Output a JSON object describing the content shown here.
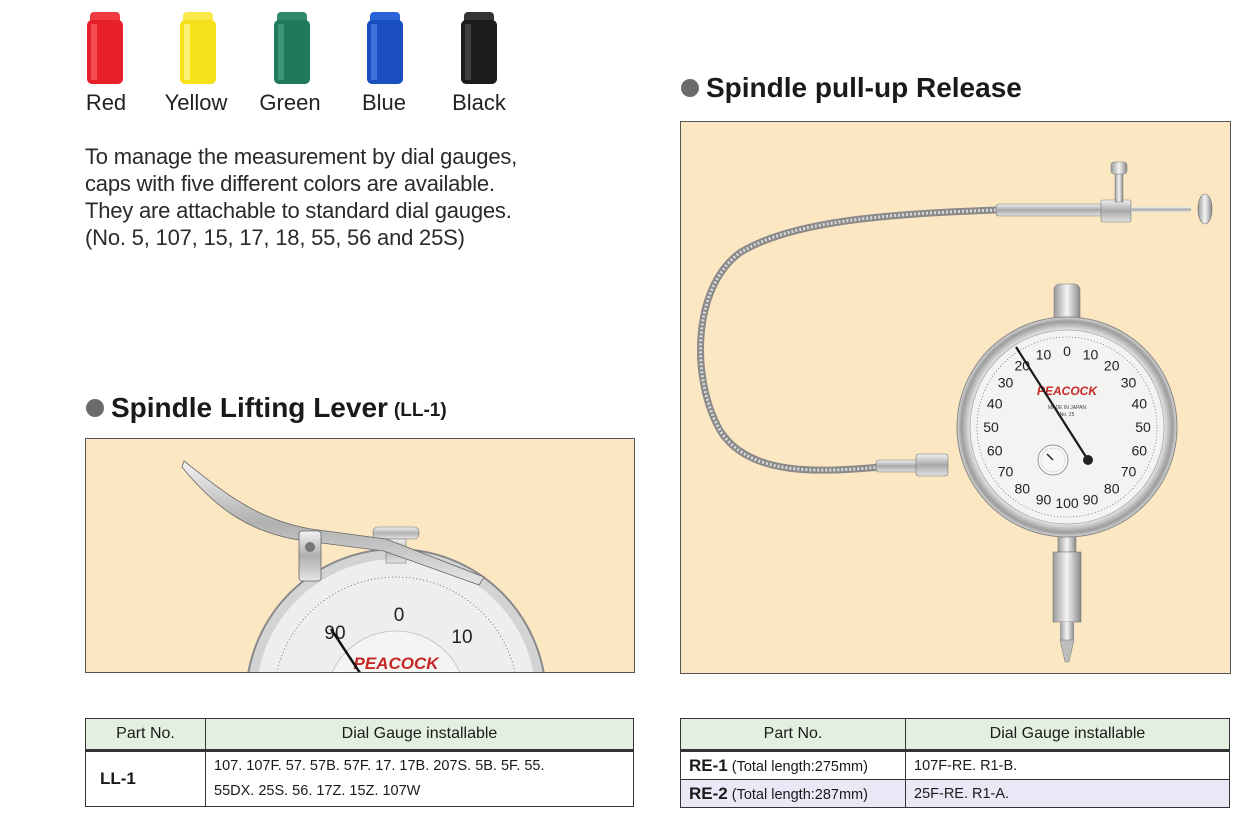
{
  "caps": [
    {
      "label": "Red",
      "color": "#e8202a"
    },
    {
      "label": "Yellow",
      "color": "#f5e01a"
    },
    {
      "label": "Green",
      "color": "#1f7a5a"
    },
    {
      "label": "Blue",
      "color": "#1b4fc0"
    },
    {
      "label": "Black",
      "color": "#1c1c1c"
    }
  ],
  "description": {
    "lines": [
      "To manage the measurement by dial gauges,",
      "caps with five different colors are available.",
      "They are attachable to standard dial gauges.",
      "(No. 5, 107, 15, 17, 18, 55, 56 and 25S)"
    ]
  },
  "lifting_lever": {
    "title": "Spindle Lifting Lever",
    "model": "(LL-1)",
    "dial_numbers": [
      "0",
      "90",
      "10"
    ],
    "brand": "PEACOCK"
  },
  "pull_up": {
    "title": "Spindle pull-up Release",
    "brand": "PEACOCK",
    "outer_numbers": [
      "0",
      "10",
      "20",
      "30",
      "40",
      "50",
      "60",
      "70",
      "80",
      "90",
      "100",
      "90",
      "80",
      "70",
      "60",
      "50",
      "40",
      "30",
      "20",
      "10"
    ],
    "made_in": "MADE IN JAPAN",
    "model_no": "No. 25"
  },
  "table_ll": {
    "headers": [
      "Part No.",
      "Dial Gauge installable"
    ],
    "rows": [
      {
        "part": "LL-1",
        "gauges_line1": "107. 107F. 57. 57B. 57F. 17. 17B. 207S. 5B. 5F. 55.",
        "gauges_line2": "55DX. 25S. 56. 17Z. 15Z. 107W"
      }
    ]
  },
  "table_re": {
    "headers": [
      "Part No.",
      "Dial Gauge installable"
    ],
    "rows": [
      {
        "part": "RE-1",
        "length": "(Total length:275mm)",
        "gauges": "107F-RE. R1-B."
      },
      {
        "part": "RE-2",
        "length": "(Total length:287mm)",
        "gauges": "25F-RE. R1-A."
      }
    ]
  }
}
